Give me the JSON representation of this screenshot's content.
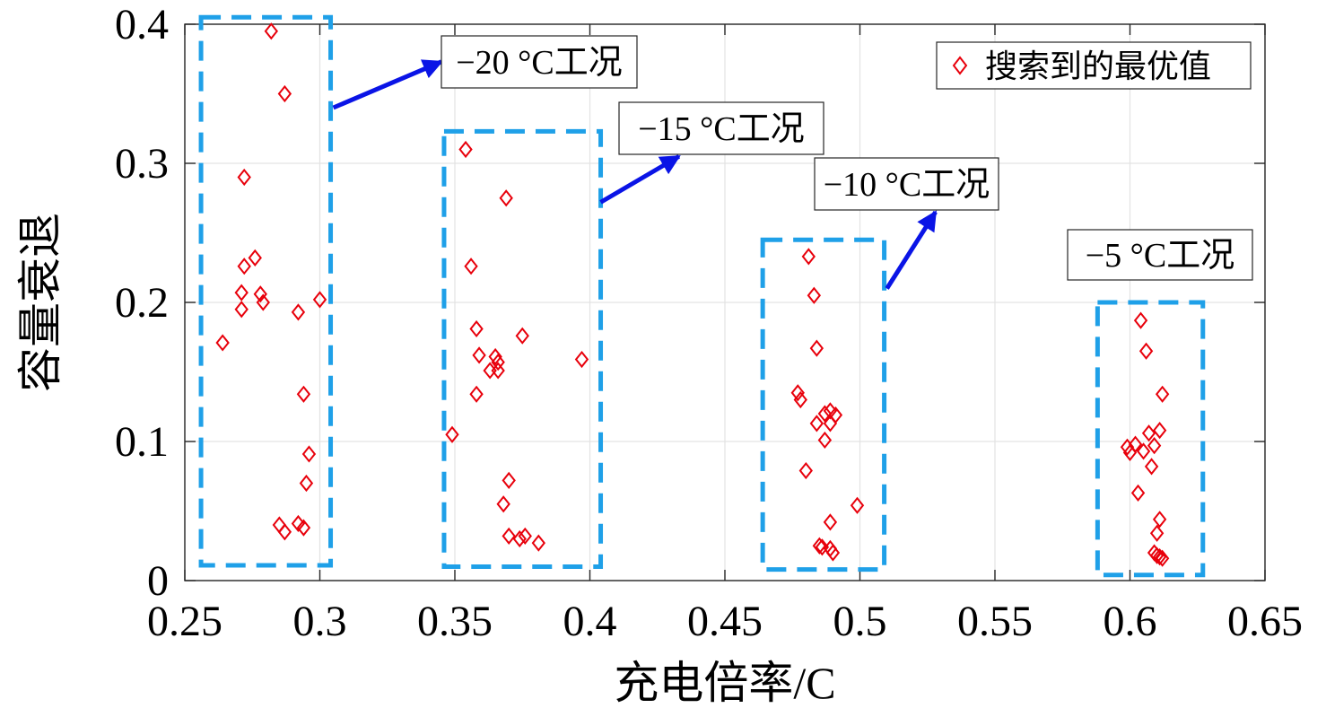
{
  "chart_data": {
    "type": "scatter",
    "xlabel": "充电倍率/C",
    "ylabel": "容量衰退",
    "xlim": [
      0.25,
      0.65
    ],
    "ylim": [
      0,
      0.4
    ],
    "xticks": [
      "0.25",
      "0.3",
      "0.35",
      "0.4",
      "0.45",
      "0.5",
      "0.55",
      "0.6",
      "0.65"
    ],
    "yticks": [
      "0",
      "0.1",
      "0.2",
      "0.3",
      "0.4"
    ],
    "grid": true,
    "legend": {
      "position": "top-right",
      "entries": [
        "搜索到的最优值"
      ]
    },
    "marker": {
      "shape": "diamond",
      "color": "#e8000b"
    },
    "box_color": "#1fa0e8",
    "arrow_color": "#0a14e6",
    "series": [
      {
        "name": "搜索到的最优值",
        "points": [
          [
            0.282,
            0.395
          ],
          [
            0.287,
            0.35
          ],
          [
            0.272,
            0.29
          ],
          [
            0.276,
            0.232
          ],
          [
            0.272,
            0.226
          ],
          [
            0.271,
            0.207
          ],
          [
            0.278,
            0.206
          ],
          [
            0.279,
            0.2
          ],
          [
            0.271,
            0.195
          ],
          [
            0.292,
            0.193
          ],
          [
            0.3,
            0.202
          ],
          [
            0.264,
            0.171
          ],
          [
            0.294,
            0.134
          ],
          [
            0.296,
            0.091
          ],
          [
            0.295,
            0.07
          ],
          [
            0.285,
            0.04
          ],
          [
            0.287,
            0.035
          ],
          [
            0.292,
            0.041
          ],
          [
            0.294,
            0.038
          ],
          [
            0.354,
            0.31
          ],
          [
            0.369,
            0.275
          ],
          [
            0.356,
            0.226
          ],
          [
            0.358,
            0.181
          ],
          [
            0.375,
            0.176
          ],
          [
            0.359,
            0.162
          ],
          [
            0.365,
            0.161
          ],
          [
            0.366,
            0.157
          ],
          [
            0.363,
            0.151
          ],
          [
            0.366,
            0.151
          ],
          [
            0.397,
            0.159
          ],
          [
            0.358,
            0.134
          ],
          [
            0.349,
            0.105
          ],
          [
            0.37,
            0.072
          ],
          [
            0.368,
            0.055
          ],
          [
            0.37,
            0.032
          ],
          [
            0.374,
            0.03
          ],
          [
            0.376,
            0.032
          ],
          [
            0.381,
            0.027
          ],
          [
            0.481,
            0.233
          ],
          [
            0.483,
            0.205
          ],
          [
            0.484,
            0.167
          ],
          [
            0.477,
            0.135
          ],
          [
            0.478,
            0.13
          ],
          [
            0.487,
            0.12
          ],
          [
            0.489,
            0.122
          ],
          [
            0.491,
            0.119
          ],
          [
            0.484,
            0.113
          ],
          [
            0.489,
            0.113
          ],
          [
            0.487,
            0.101
          ],
          [
            0.48,
            0.079
          ],
          [
            0.499,
            0.054
          ],
          [
            0.489,
            0.042
          ],
          [
            0.485,
            0.025
          ],
          [
            0.486,
            0.024
          ],
          [
            0.489,
            0.023
          ],
          [
            0.49,
            0.02
          ],
          [
            0.604,
            0.187
          ],
          [
            0.606,
            0.165
          ],
          [
            0.612,
            0.134
          ],
          [
            0.611,
            0.108
          ],
          [
            0.607,
            0.106
          ],
          [
            0.599,
            0.096
          ],
          [
            0.602,
            0.098
          ],
          [
            0.6,
            0.092
          ],
          [
            0.605,
            0.093
          ],
          [
            0.609,
            0.097
          ],
          [
            0.608,
            0.082
          ],
          [
            0.603,
            0.063
          ],
          [
            0.611,
            0.044
          ],
          [
            0.61,
            0.034
          ],
          [
            0.609,
            0.02
          ],
          [
            0.61,
            0.018
          ],
          [
            0.611,
            0.017
          ],
          [
            0.612,
            0.016
          ]
        ]
      }
    ],
    "annotations": [
      {
        "text": "−20 °C工况",
        "box_x": [
          0.256,
          0.304
        ],
        "box_y": [
          0.011,
          0.405
        ],
        "arrow_from": [
          0.305,
          0.34
        ],
        "arrow_to": [
          0.345,
          0.373
        ]
      },
      {
        "text": "−15 °C工况",
        "box_x": [
          0.346,
          0.404
        ],
        "box_y": [
          0.01,
          0.323
        ],
        "arrow_from": [
          0.404,
          0.272
        ],
        "arrow_to": [
          0.433,
          0.305
        ]
      },
      {
        "text": "−10 °C工况",
        "box_x": [
          0.464,
          0.509
        ],
        "box_y": [
          0.008,
          0.245
        ],
        "arrow_from": [
          0.51,
          0.21
        ],
        "arrow_to": [
          0.528,
          0.265
        ]
      },
      {
        "text": "−5 °C工况",
        "box_x": [
          0.588,
          0.627
        ],
        "box_y": [
          0.004,
          0.2
        ]
      }
    ]
  }
}
